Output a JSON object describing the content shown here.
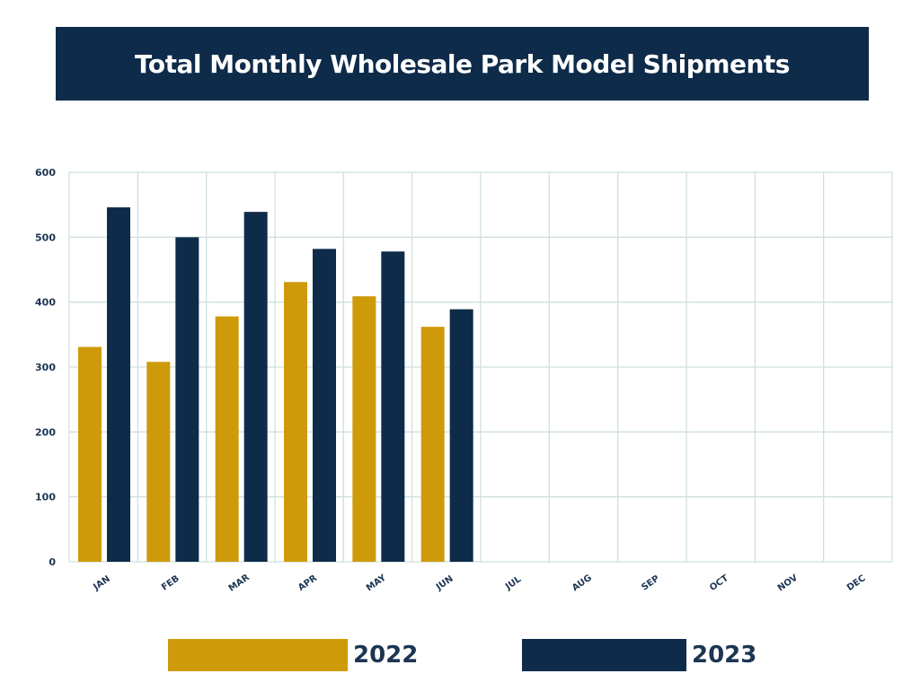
{
  "chart_data": {
    "type": "bar",
    "title": "Total Monthly Wholesale Park Model Shipments",
    "xlabel": "",
    "ylabel": "",
    "categories": [
      "JAN",
      "FEB",
      "MAR",
      "APR",
      "MAY",
      "JUN",
      "JUL",
      "AUG",
      "SEP",
      "OCT",
      "NOV",
      "DEC"
    ],
    "series": [
      {
        "name": "2022",
        "color": "#cf9a0a",
        "values": [
          331,
          308,
          378,
          431,
          409,
          362,
          null,
          null,
          null,
          null,
          null,
          null
        ]
      },
      {
        "name": "2023",
        "color": "#0e2b4a",
        "values": [
          546,
          500,
          539,
          482,
          478,
          389,
          null,
          null,
          null,
          null,
          null,
          null
        ]
      }
    ],
    "ylim": [
      0,
      600
    ],
    "yticks": [
      0,
      100,
      200,
      300,
      400,
      500,
      600
    ],
    "grid": true,
    "legend_position": "bottom"
  },
  "colors": {
    "banner": "#0e2b4a",
    "grid": "#cfe0de",
    "tick_text": "#1c3553"
  }
}
